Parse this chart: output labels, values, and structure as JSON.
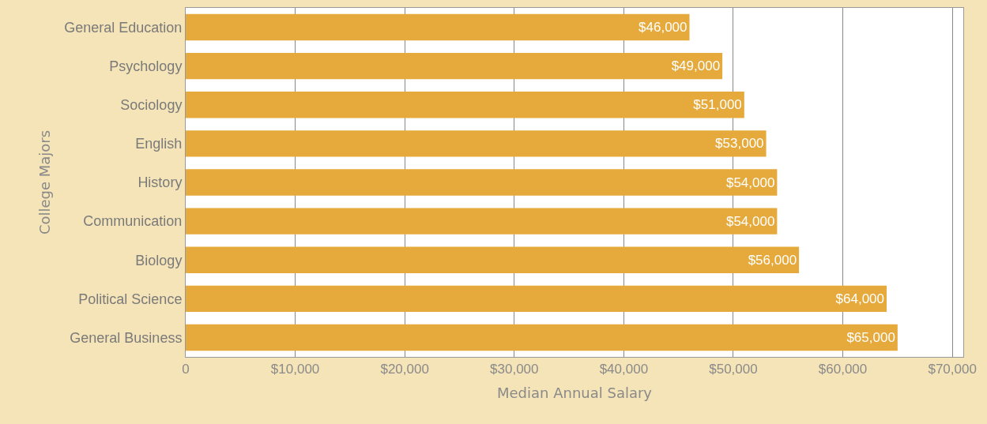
{
  "chart_data": {
    "type": "bar",
    "orientation": "horizontal",
    "xlabel": "Median Annual Salary",
    "ylabel": "College Majors",
    "categories": [
      "General Education",
      "Psychology",
      "Sociology",
      "English",
      "History",
      "Communication",
      "Biology",
      "Political Science",
      "General Business"
    ],
    "values": [
      46000,
      49000,
      51000,
      53000,
      54000,
      54000,
      56000,
      64000,
      65000
    ],
    "value_labels": [
      "$46,000",
      "$49,000",
      "$51,000",
      "$53,000",
      "$54,000",
      "$54,000",
      "$56,000",
      "$64,000",
      "$65,000"
    ],
    "color": "#e6aa3c",
    "xlim": [
      0,
      71000
    ],
    "xticks": [
      0,
      {
        "value": 10000,
        "label": "$10,000"
      },
      {
        "value": 20000,
        "label": "$20,000"
      },
      {
        "value": 30000,
        "label": "$30,000"
      },
      {
        "value": 40000,
        "label": "$40,000"
      },
      {
        "value": 50000,
        "label": "$50,000"
      },
      {
        "value": 60000,
        "label": "$60,000"
      },
      {
        "value": 70000,
        "label": "$70,000"
      }
    ],
    "grid": "x"
  }
}
